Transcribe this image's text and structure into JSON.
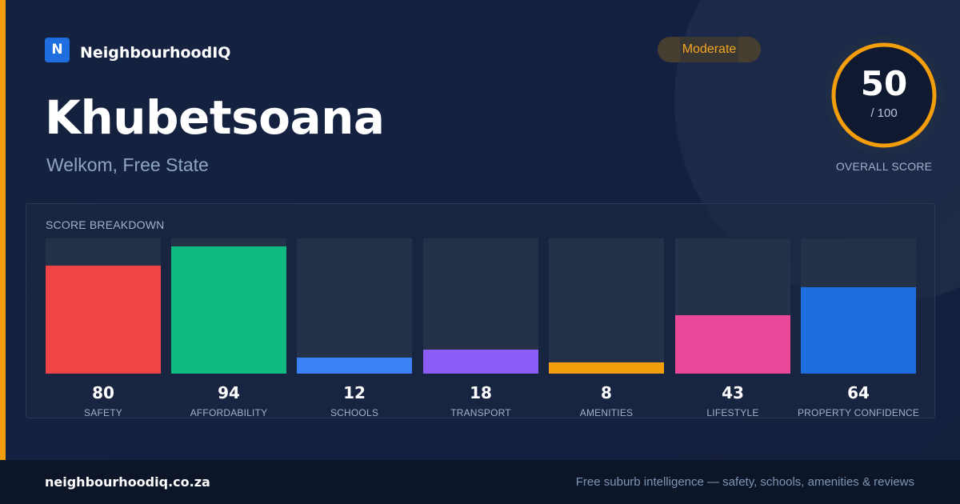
{
  "brand": {
    "logo_letter": "N",
    "name": "NeighbourhoodIQ"
  },
  "suburb": {
    "name": "Khubetsoana",
    "location": "Welkom, Free State"
  },
  "rating": {
    "label": "Moderate"
  },
  "overall": {
    "score": "50",
    "max": "/ 100",
    "fraction": 0.5,
    "caption": "OVERALL SCORE"
  },
  "breakdown": {
    "title": "SCORE BREAKDOWN",
    "items": [
      {
        "label": "SAFETY",
        "value": "80",
        "fraction": 0.8,
        "color": "#ef4444"
      },
      {
        "label": "AFFORDABILITY",
        "value": "94",
        "fraction": 0.94,
        "color": "#10b981"
      },
      {
        "label": "SCHOOLS",
        "value": "12",
        "fraction": 0.12,
        "color": "#3b82f6"
      },
      {
        "label": "TRANSPORT",
        "value": "18",
        "fraction": 0.18,
        "color": "#8b5cf6"
      },
      {
        "label": "AMENITIES",
        "value": "8",
        "fraction": 0.08,
        "color": "#f59e0b"
      },
      {
        "label": "LIFESTYLE",
        "value": "43",
        "fraction": 0.43,
        "color": "#ec4899"
      },
      {
        "label": "PROPERTY CONFIDENCE",
        "value": "64",
        "fraction": 0.64,
        "color": "#1e6ee0"
      }
    ]
  },
  "footer": {
    "site": "neighbourhoodiq.co.za",
    "tagline": "Free suburb intelligence — safety, schools, amenities & reviews"
  },
  "colors": {
    "accent": "#f59e0b",
    "ring": "#f59e0b",
    "background": "#13203b"
  }
}
